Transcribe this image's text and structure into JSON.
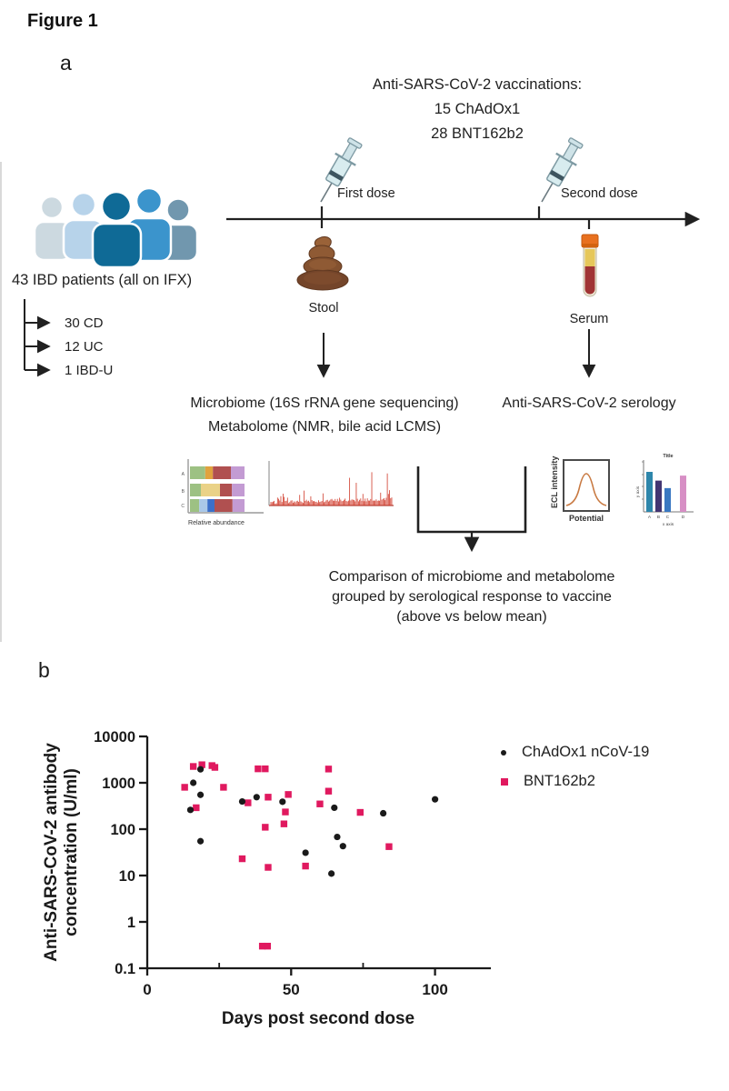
{
  "figure_title": "Figure 1",
  "colors": {
    "line": "#212121",
    "accent_pink": "#E0195F",
    "black_marker": "#1a1a1a"
  },
  "panel_a": {
    "label": "a",
    "vaccinations_lines": [
      "Anti-SARS-CoV-2 vaccinations:",
      "15 ChAdOx1",
      "28 BNT162b2"
    ],
    "first_dose_label": "First dose",
    "second_dose_label": "Second dose",
    "patients_label": "43 IBD patients (all on IFX)",
    "patient_groups": [
      "30 CD",
      "12 UC",
      "1 IBD-U"
    ],
    "stool_label": "Stool",
    "serum_label": "Serum",
    "microbiome_label": "Microbiome (16S rRNA gene sequencing)",
    "metabolome_label": "Metabolome (NMR, bile acid LCMS)",
    "serology_label": "Anti-SARS-CoV-2 serology",
    "comparison_lines": [
      "Comparison of microbiome and metabolome",
      "grouped by serological response to vaccine",
      "(above vs below mean)"
    ],
    "people_colors": [
      "#ccd9e0",
      "#b7d3ea",
      "#0f6a96",
      "#3b94cc",
      "#7197ae"
    ],
    "thumbnails": {
      "abundance": {
        "caption": "Relative abundance",
        "row_labels": [
          "A",
          "B",
          "C"
        ],
        "rows": [
          [
            {
              "c": "#9dc183",
              "w": 0.28
            },
            {
              "c": "#e0a23e",
              "w": 0.14
            },
            {
              "c": "#b05050",
              "w": 0.33
            },
            {
              "c": "#c39bd3",
              "w": 0.25
            }
          ],
          [
            {
              "c": "#9dc183",
              "w": 0.2
            },
            {
              "c": "#ead287",
              "w": 0.35
            },
            {
              "c": "#b05050",
              "w": 0.22
            },
            {
              "c": "#c39bd3",
              "w": 0.23
            }
          ],
          [
            {
              "c": "#9dc183",
              "w": 0.17
            },
            {
              "c": "#aac8e8",
              "w": 0.15
            },
            {
              "c": "#3b6fc9",
              "w": 0.13
            },
            {
              "c": "#b05050",
              "w": 0.33
            },
            {
              "c": "#c39bd3",
              "w": 0.22
            }
          ]
        ]
      },
      "spectrum": {
        "color": "#d03a2a"
      },
      "ecl": {
        "ylabel": "ECL intensity",
        "xlabel": "Potential",
        "curve_color": "#c87941"
      },
      "mini_chart": {
        "title": "Title",
        "xlabel": "x axis",
        "ylabel": "y axis",
        "categories": [
          "A",
          "B",
          "C",
          "D"
        ],
        "values": [
          16,
          12.5,
          9.5,
          14.5
        ],
        "ymax": 20,
        "colors": [
          "#2e86ab",
          "#433572",
          "#3a78c2",
          "#d78fc5"
        ]
      }
    }
  },
  "panel_b": {
    "label": "b"
  },
  "chart_data": {
    "type": "scatter",
    "xlabel": "Days post second dose",
    "ylabel_lines": [
      "Anti-SARS-CoV-2 antibody",
      "concentration (U/ml)"
    ],
    "x_ticks": [
      0,
      50,
      100
    ],
    "x_minor_ticks": [
      25,
      75
    ],
    "xlim": [
      0,
      119
    ],
    "y_scale": "log",
    "y_ticks": [
      0.1,
      1,
      10,
      100,
      1000,
      10000
    ],
    "ylim": [
      0.1,
      10000
    ],
    "legend_position": "right",
    "series": [
      {
        "name": "ChAdOx1 nCoV-19",
        "marker": "circle",
        "color": "#1a1a1a",
        "points": [
          [
            15,
            260
          ],
          [
            16,
            1000
          ],
          [
            18.5,
            1950
          ],
          [
            18.5,
            550
          ],
          [
            18.5,
            55
          ],
          [
            33,
            395
          ],
          [
            38,
            490
          ],
          [
            47,
            390
          ],
          [
            55,
            31
          ],
          [
            64,
            11
          ],
          [
            65,
            290
          ],
          [
            66,
            68
          ],
          [
            68,
            43
          ],
          [
            82,
            220
          ],
          [
            100,
            440
          ]
        ]
      },
      {
        "name": "BNT162b2",
        "marker": "square",
        "color": "#E0195F",
        "points": [
          [
            13,
            800
          ],
          [
            16,
            2250
          ],
          [
            19,
            2450
          ],
          [
            22.5,
            2350
          ],
          [
            23.5,
            2150
          ],
          [
            17,
            290
          ],
          [
            26.5,
            800
          ],
          [
            33,
            23
          ],
          [
            35,
            370
          ],
          [
            38.5,
            2000
          ],
          [
            41,
            2000
          ],
          [
            41,
            110
          ],
          [
            40,
            0.3
          ],
          [
            41.8,
            0.3
          ],
          [
            42,
            490
          ],
          [
            42,
            15
          ],
          [
            47.5,
            130
          ],
          [
            48,
            235
          ],
          [
            49,
            560
          ],
          [
            55,
            16
          ],
          [
            60,
            350
          ],
          [
            63,
            1980
          ],
          [
            63,
            660
          ],
          [
            74,
            230
          ],
          [
            84,
            42
          ]
        ]
      }
    ]
  }
}
